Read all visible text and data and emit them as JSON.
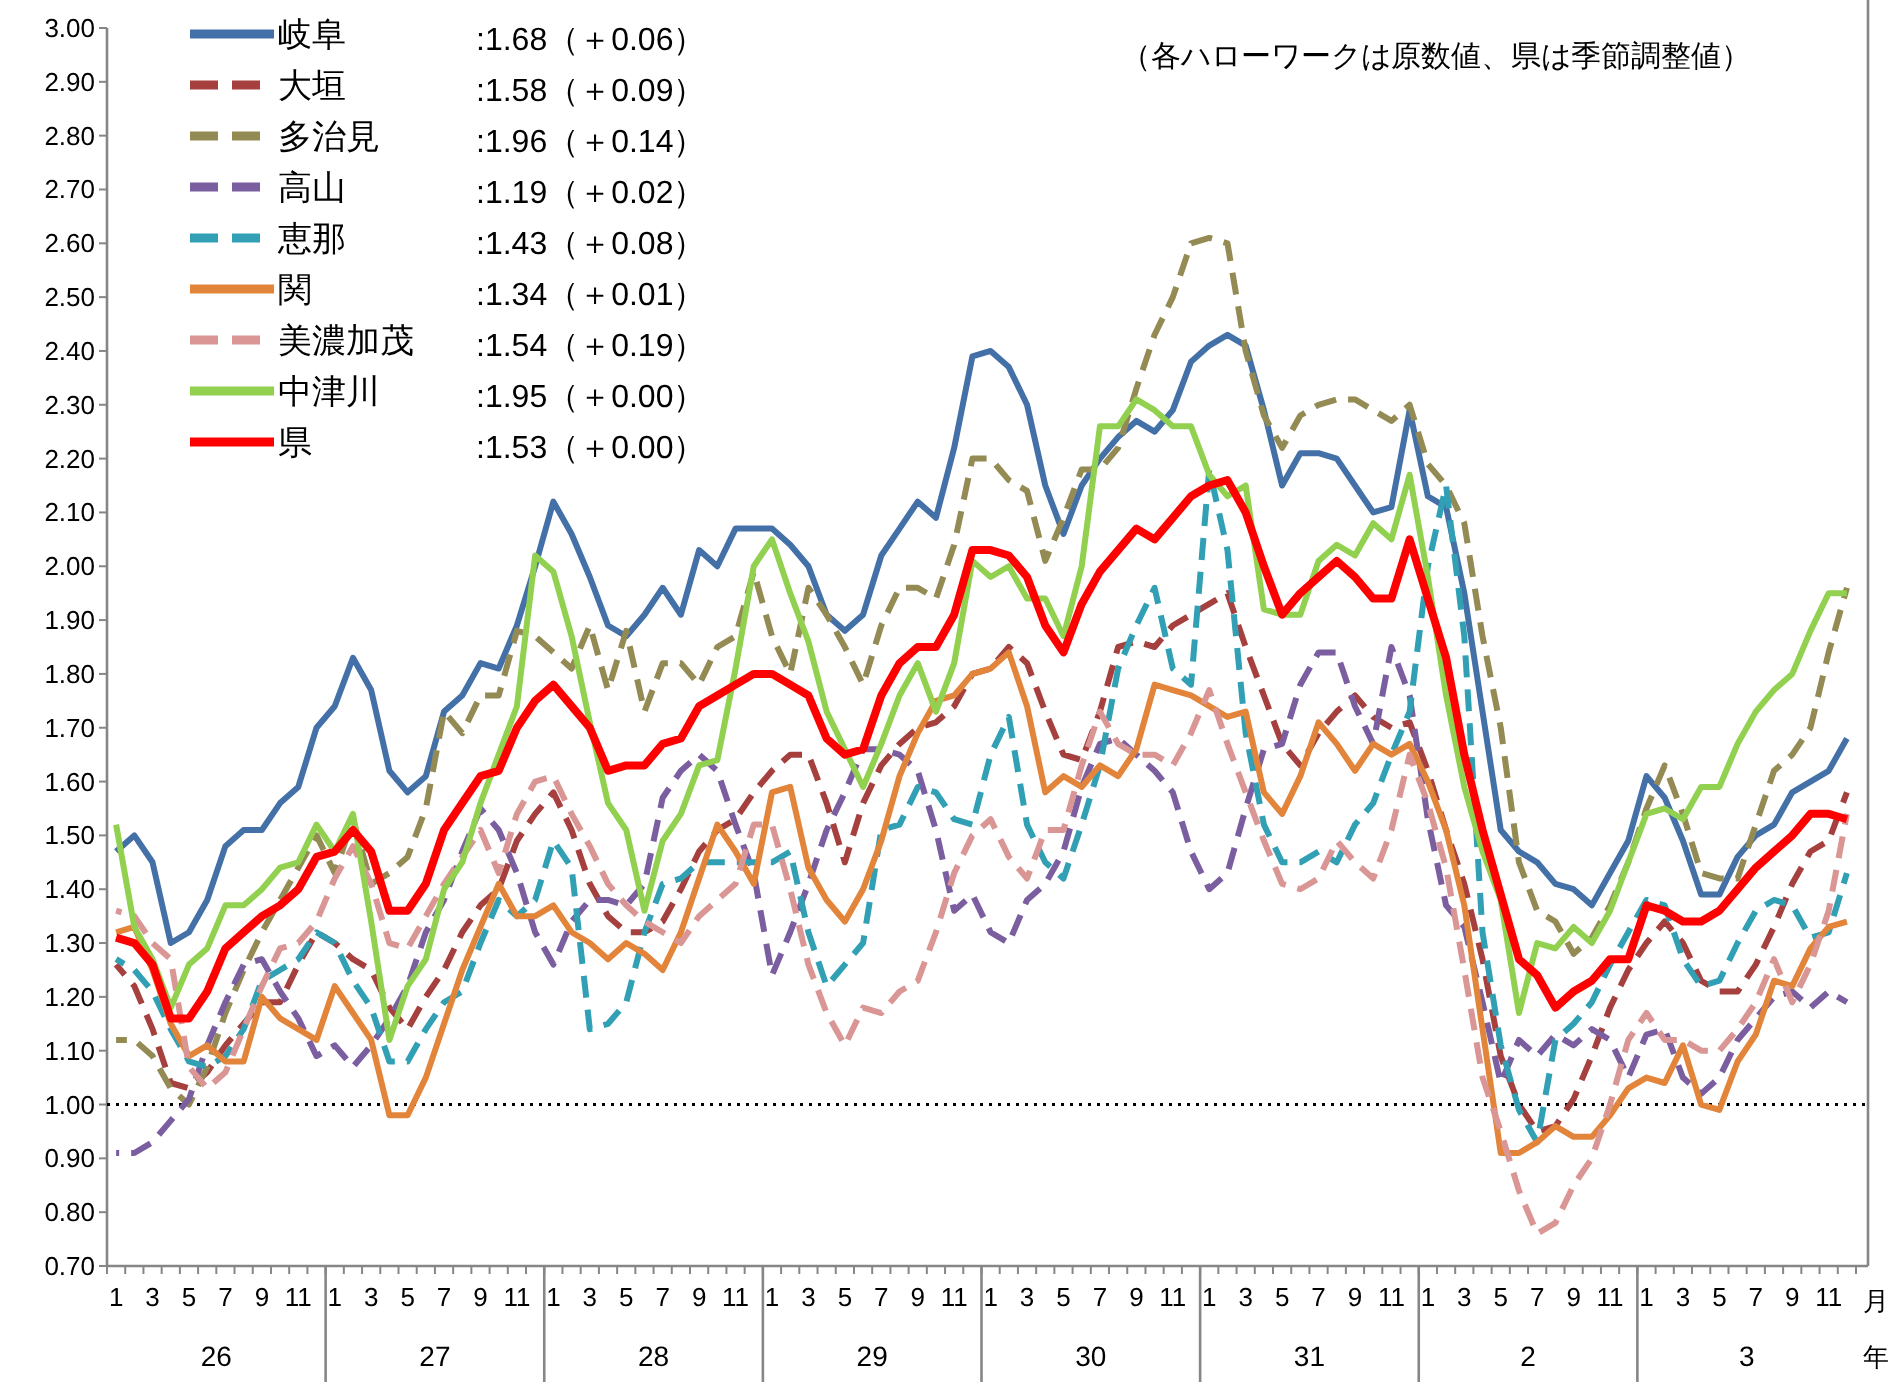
{
  "chart_data": {
    "type": "line",
    "categories": [
      "1",
      null,
      "3",
      null,
      "5",
      null,
      "7",
      null,
      "9",
      null,
      "11",
      null,
      "1",
      null,
      "3",
      null,
      "5",
      null,
      "7",
      null,
      "9",
      null,
      "11",
      null,
      "1",
      null,
      "3",
      null,
      "5",
      null,
      "7",
      null,
      "9",
      null,
      "11",
      null,
      "1",
      null,
      "3",
      null,
      "5",
      null,
      "7",
      null,
      "9",
      null,
      "11",
      null,
      "1",
      null,
      "3",
      null,
      "5",
      null,
      "7",
      null,
      "9",
      null,
      "11",
      null,
      "1",
      null,
      "3",
      null,
      "5",
      null,
      "7",
      null,
      "9",
      null,
      "11",
      null,
      "1",
      null,
      "3",
      null,
      "5",
      null,
      "7",
      null,
      "9",
      null,
      "11",
      null,
      "1",
      null,
      "3",
      null,
      "5",
      null,
      "7",
      null,
      "9",
      null,
      "11",
      null
    ],
    "ylim": [
      0.7,
      3.0
    ],
    "yticks": [
      {
        "value": 0.7,
        "label": "0.70"
      },
      {
        "value": 0.8,
        "label": "0.80"
      },
      {
        "value": 0.9,
        "label": "0.90"
      },
      {
        "value": 1.0,
        "label": "1.00"
      },
      {
        "value": 1.1,
        "label": "1.10"
      },
      {
        "value": 1.2,
        "label": "1.20"
      },
      {
        "value": 1.3,
        "label": "1.30"
      },
      {
        "value": 1.4,
        "label": "1.40"
      },
      {
        "value": 1.5,
        "label": "1.50"
      },
      {
        "value": 1.6,
        "label": "1.60"
      },
      {
        "value": 1.7,
        "label": "1.70"
      },
      {
        "value": 1.8,
        "label": "1.80"
      },
      {
        "value": 1.9,
        "label": "1.90"
      },
      {
        "value": 2.0,
        "label": "2.00"
      },
      {
        "value": 2.1,
        "label": "2.10"
      },
      {
        "value": 2.2,
        "label": "2.20"
      },
      {
        "value": 2.3,
        "label": "2.30"
      },
      {
        "value": 2.4,
        "label": "2.40"
      },
      {
        "value": 2.5,
        "label": "2.50"
      },
      {
        "value": 2.6,
        "label": "2.60"
      },
      {
        "value": 2.7,
        "label": "2.70"
      },
      {
        "value": 2.8,
        "label": "2.80"
      },
      {
        "value": 2.9,
        "label": "2.90"
      },
      {
        "value": 3.0,
        "label": "3.00"
      }
    ],
    "legend": "top left",
    "ref_lines": [
      {
        "axis": "y",
        "value": 1.0,
        "color": "#000000",
        "line_style": "dotted"
      }
    ],
    "series": [
      {
        "name": "岐阜",
        "color": "#4470a8",
        "line_style": "solid",
        "values": [
          1.47,
          1.5,
          1.45,
          1.3,
          1.32,
          1.38,
          1.48,
          1.51,
          1.51,
          1.56,
          1.59,
          1.7,
          1.74,
          1.83,
          1.77,
          1.62,
          1.58,
          1.61,
          1.73,
          1.76,
          1.82,
          1.81,
          1.89,
          2.0,
          2.12,
          2.06,
          1.98,
          1.89,
          1.87,
          1.91,
          1.96,
          1.91,
          2.03,
          2.0,
          2.07,
          2.07,
          2.07,
          2.04,
          2.0,
          1.91,
          1.88,
          1.91,
          2.02,
          2.07,
          2.12,
          2.09,
          2.22,
          2.39,
          2.4,
          2.37,
          2.3,
          2.15,
          2.06,
          2.15,
          2.2,
          2.24,
          2.27,
          2.25,
          2.29,
          2.38,
          2.41,
          2.43,
          2.41,
          2.29,
          2.15,
          2.21,
          2.21,
          2.2,
          2.15,
          2.1,
          2.11,
          2.29,
          2.13,
          2.11,
          1.95,
          1.73,
          1.51,
          1.47,
          1.45,
          1.41,
          1.4,
          1.37,
          1.43,
          1.49,
          1.61,
          1.57,
          1.49,
          1.39,
          1.39,
          1.46,
          1.5,
          1.52,
          1.58,
          1.6,
          1.62,
          1.68
        ]
      },
      {
        "name": "大垣",
        "color": "#a5403e",
        "line_style": "dashed",
        "values": [
          1.26,
          1.22,
          1.14,
          1.04,
          1.03,
          1.06,
          1.11,
          1.15,
          1.19,
          1.19,
          1.26,
          1.32,
          1.3,
          1.27,
          1.25,
          1.18,
          1.14,
          1.2,
          1.25,
          1.32,
          1.37,
          1.4,
          1.49,
          1.54,
          1.58,
          1.51,
          1.41,
          1.35,
          1.32,
          1.32,
          1.34,
          1.4,
          1.47,
          1.51,
          1.53,
          1.58,
          1.62,
          1.65,
          1.65,
          1.56,
          1.45,
          1.56,
          1.63,
          1.67,
          1.7,
          1.71,
          1.74,
          1.8,
          1.81,
          1.85,
          1.82,
          1.73,
          1.65,
          1.64,
          1.73,
          1.85,
          1.86,
          1.85,
          1.89,
          1.91,
          1.93,
          1.95,
          1.85,
          1.76,
          1.67,
          1.63,
          1.69,
          1.73,
          1.76,
          1.72,
          1.7,
          1.71,
          1.62,
          1.51,
          1.41,
          1.27,
          1.09,
          1.0,
          0.95,
          0.96,
          1.01,
          1.09,
          1.18,
          1.25,
          1.3,
          1.34,
          1.3,
          1.23,
          1.21,
          1.21,
          1.26,
          1.33,
          1.41,
          1.47,
          1.49,
          1.58
        ]
      },
      {
        "name": "多治見",
        "color": "#948a54",
        "line_style": "dashed",
        "values": [
          1.12,
          1.12,
          1.09,
          1.03,
          1.0,
          1.07,
          1.17,
          1.25,
          1.32,
          1.38,
          1.44,
          1.5,
          1.43,
          1.53,
          1.41,
          1.43,
          1.46,
          1.55,
          1.73,
          1.69,
          1.76,
          1.76,
          1.88,
          1.87,
          1.84,
          1.81,
          1.89,
          1.77,
          1.88,
          1.73,
          1.82,
          1.82,
          1.78,
          1.85,
          1.87,
          1.99,
          1.87,
          1.8,
          1.96,
          1.91,
          1.85,
          1.78,
          1.89,
          1.96,
          1.96,
          1.94,
          2.04,
          2.2,
          2.2,
          2.16,
          2.14,
          2.01,
          2.09,
          2.18,
          2.18,
          2.22,
          2.33,
          2.43,
          2.5,
          2.6,
          2.61,
          2.6,
          2.4,
          2.28,
          2.22,
          2.28,
          2.3,
          2.31,
          2.31,
          2.29,
          2.27,
          2.3,
          2.19,
          2.15,
          2.08,
          1.87,
          1.7,
          1.45,
          1.36,
          1.34,
          1.28,
          1.31,
          1.37,
          1.45,
          1.55,
          1.63,
          1.54,
          1.43,
          1.42,
          1.42,
          1.52,
          1.62,
          1.65,
          1.7,
          1.84,
          1.96
        ]
      },
      {
        "name": "高山",
        "color": "#7b5ea0",
        "line_style": "dashed",
        "values": [
          0.91,
          0.91,
          0.93,
          0.97,
          1.01,
          1.11,
          1.19,
          1.26,
          1.27,
          1.21,
          1.16,
          1.09,
          1.11,
          1.07,
          1.11,
          1.16,
          1.22,
          1.32,
          1.38,
          1.47,
          1.55,
          1.51,
          1.43,
          1.32,
          1.26,
          1.34,
          1.38,
          1.38,
          1.37,
          1.41,
          1.57,
          1.62,
          1.65,
          1.62,
          1.52,
          1.43,
          1.24,
          1.32,
          1.41,
          1.51,
          1.58,
          1.66,
          1.66,
          1.65,
          1.62,
          1.51,
          1.36,
          1.39,
          1.32,
          1.3,
          1.38,
          1.41,
          1.47,
          1.59,
          1.67,
          1.68,
          1.65,
          1.62,
          1.58,
          1.47,
          1.4,
          1.43,
          1.55,
          1.66,
          1.67,
          1.78,
          1.84,
          1.84,
          1.74,
          1.67,
          1.85,
          1.76,
          1.53,
          1.37,
          1.33,
          1.19,
          1.04,
          1.12,
          1.09,
          1.13,
          1.11,
          1.14,
          1.12,
          1.05,
          1.13,
          1.14,
          1.05,
          1.02,
          1.05,
          1.12,
          1.16,
          1.2,
          1.21,
          1.18,
          1.21,
          1.19
        ]
      },
      {
        "name": "恵那",
        "color": "#31a0b5",
        "line_style": "dashed",
        "values": [
          1.27,
          1.25,
          1.21,
          1.14,
          1.08,
          1.07,
          1.09,
          1.14,
          1.23,
          1.25,
          1.27,
          1.32,
          1.3,
          1.23,
          1.18,
          1.08,
          1.08,
          1.14,
          1.19,
          1.21,
          1.3,
          1.38,
          1.35,
          1.38,
          1.49,
          1.44,
          1.14,
          1.15,
          1.19,
          1.32,
          1.41,
          1.42,
          1.45,
          1.45,
          1.45,
          1.45,
          1.45,
          1.47,
          1.32,
          1.22,
          1.26,
          1.3,
          1.51,
          1.52,
          1.59,
          1.58,
          1.53,
          1.52,
          1.65,
          1.72,
          1.52,
          1.45,
          1.42,
          1.52,
          1.63,
          1.81,
          1.89,
          1.96,
          1.81,
          1.78,
          2.18,
          2.03,
          1.69,
          1.52,
          1.45,
          1.45,
          1.47,
          1.45,
          1.52,
          1.56,
          1.65,
          1.73,
          2.0,
          2.15,
          1.87,
          1.32,
          1.11,
          0.99,
          0.93,
          1.12,
          1.15,
          1.19,
          1.26,
          1.32,
          1.38,
          1.37,
          1.27,
          1.22,
          1.23,
          1.3,
          1.36,
          1.38,
          1.37,
          1.31,
          1.32,
          1.43
        ]
      },
      {
        "name": "関",
        "color": "#e2853a",
        "line_style": "solid",
        "values": [
          1.32,
          1.33,
          1.25,
          1.15,
          1.09,
          1.11,
          1.08,
          1.08,
          1.2,
          1.16,
          1.14,
          1.12,
          1.22,
          1.17,
          1.12,
          0.98,
          0.98,
          1.05,
          1.15,
          1.25,
          1.33,
          1.41,
          1.35,
          1.35,
          1.37,
          1.32,
          1.3,
          1.27,
          1.3,
          1.28,
          1.25,
          1.32,
          1.42,
          1.52,
          1.47,
          1.41,
          1.58,
          1.59,
          1.44,
          1.38,
          1.34,
          1.4,
          1.49,
          1.61,
          1.69,
          1.75,
          1.76,
          1.8,
          1.81,
          1.84,
          1.74,
          1.58,
          1.61,
          1.59,
          1.63,
          1.61,
          1.66,
          1.78,
          1.77,
          1.76,
          1.74,
          1.72,
          1.73,
          1.58,
          1.54,
          1.61,
          1.71,
          1.67,
          1.62,
          1.67,
          1.65,
          1.67,
          1.6,
          1.51,
          1.37,
          1.14,
          0.91,
          0.91,
          0.93,
          0.96,
          0.94,
          0.94,
          0.98,
          1.03,
          1.05,
          1.04,
          1.11,
          1.0,
          0.99,
          1.08,
          1.13,
          1.23,
          1.22,
          1.29,
          1.33,
          1.34
        ]
      },
      {
        "name": "美濃加茂",
        "color": "#d99694",
        "line_style": "dashed",
        "values": [
          1.36,
          1.35,
          1.3,
          1.27,
          1.07,
          1.03,
          1.06,
          1.14,
          1.22,
          1.29,
          1.3,
          1.34,
          1.42,
          1.48,
          1.41,
          1.3,
          1.29,
          1.35,
          1.41,
          1.46,
          1.51,
          1.43,
          1.54,
          1.6,
          1.61,
          1.54,
          1.48,
          1.41,
          1.37,
          1.34,
          1.32,
          1.3,
          1.35,
          1.38,
          1.41,
          1.52,
          1.52,
          1.4,
          1.26,
          1.17,
          1.11,
          1.18,
          1.17,
          1.21,
          1.23,
          1.32,
          1.43,
          1.5,
          1.53,
          1.46,
          1.42,
          1.51,
          1.51,
          1.63,
          1.73,
          1.67,
          1.65,
          1.65,
          1.63,
          1.69,
          1.77,
          1.67,
          1.58,
          1.49,
          1.41,
          1.4,
          1.42,
          1.49,
          1.45,
          1.42,
          1.51,
          1.65,
          1.56,
          1.44,
          1.25,
          1.05,
          0.95,
          0.84,
          0.76,
          0.78,
          0.85,
          0.9,
          1.0,
          1.12,
          1.17,
          1.12,
          1.12,
          1.1,
          1.1,
          1.14,
          1.19,
          1.27,
          1.19,
          1.26,
          1.36,
          1.54
        ]
      },
      {
        "name": "中津川",
        "color": "#92d050",
        "line_style": "solid",
        "values": [
          1.52,
          1.33,
          1.27,
          1.18,
          1.26,
          1.29,
          1.37,
          1.37,
          1.4,
          1.44,
          1.45,
          1.52,
          1.47,
          1.54,
          1.34,
          1.12,
          1.22,
          1.27,
          1.4,
          1.45,
          1.56,
          1.65,
          1.74,
          2.02,
          1.99,
          1.87,
          1.71,
          1.56,
          1.51,
          1.36,
          1.49,
          1.54,
          1.63,
          1.64,
          1.81,
          2.0,
          2.05,
          1.95,
          1.86,
          1.73,
          1.66,
          1.59,
          1.67,
          1.76,
          1.82,
          1.73,
          1.82,
          2.01,
          1.98,
          2.0,
          1.94,
          1.94,
          1.87,
          2.0,
          2.26,
          2.26,
          2.31,
          2.29,
          2.26,
          2.26,
          2.17,
          2.13,
          2.15,
          1.92,
          1.91,
          1.91,
          2.01,
          2.04,
          2.02,
          2.08,
          2.05,
          2.17,
          1.98,
          1.76,
          1.59,
          1.47,
          1.38,
          1.17,
          1.3,
          1.29,
          1.33,
          1.3,
          1.36,
          1.45,
          1.54,
          1.55,
          1.53,
          1.59,
          1.59,
          1.67,
          1.73,
          1.77,
          1.8,
          1.88,
          1.95,
          1.95
        ]
      },
      {
        "name": "県",
        "color": "#ff0000",
        "line_style": "solid",
        "values": [
          1.31,
          1.3,
          1.26,
          1.16,
          1.16,
          1.21,
          1.29,
          1.32,
          1.35,
          1.37,
          1.4,
          1.46,
          1.47,
          1.51,
          1.47,
          1.36,
          1.36,
          1.41,
          1.51,
          1.56,
          1.61,
          1.62,
          1.7,
          1.75,
          1.78,
          1.74,
          1.7,
          1.62,
          1.63,
          1.63,
          1.67,
          1.68,
          1.74,
          1.76,
          1.78,
          1.8,
          1.8,
          1.78,
          1.76,
          1.68,
          1.65,
          1.66,
          1.76,
          1.82,
          1.85,
          1.85,
          1.91,
          2.03,
          2.03,
          2.02,
          1.98,
          1.89,
          1.84,
          1.93,
          1.99,
          2.03,
          2.07,
          2.05,
          2.09,
          2.13,
          2.15,
          2.16,
          2.1,
          2.0,
          1.91,
          1.95,
          1.98,
          2.01,
          1.98,
          1.94,
          1.94,
          2.05,
          1.94,
          1.83,
          1.65,
          1.51,
          1.39,
          1.27,
          1.24,
          1.18,
          1.21,
          1.23,
          1.27,
          1.27,
          1.37,
          1.36,
          1.34,
          1.34,
          1.36,
          1.4,
          1.44,
          1.47,
          1.5,
          1.54,
          1.54,
          1.53
        ]
      }
    ],
    "annotations": [
      "（各ハローワークは原数値、県は季節調整値）",
      ":1.68（＋0.06）",
      ":1.58（＋0.09）",
      ":1.96（＋0.14）",
      ":1.19（＋0.02）",
      ":1.43（＋0.08）",
      ":1.34（＋0.01）",
      ":1.54（＋0.19）",
      ":1.95（＋0.00）",
      ":1.53（＋0.00）",
      "26",
      "27",
      "28",
      "29",
      "30",
      "31",
      "2",
      "3",
      "月",
      "年"
    ]
  }
}
